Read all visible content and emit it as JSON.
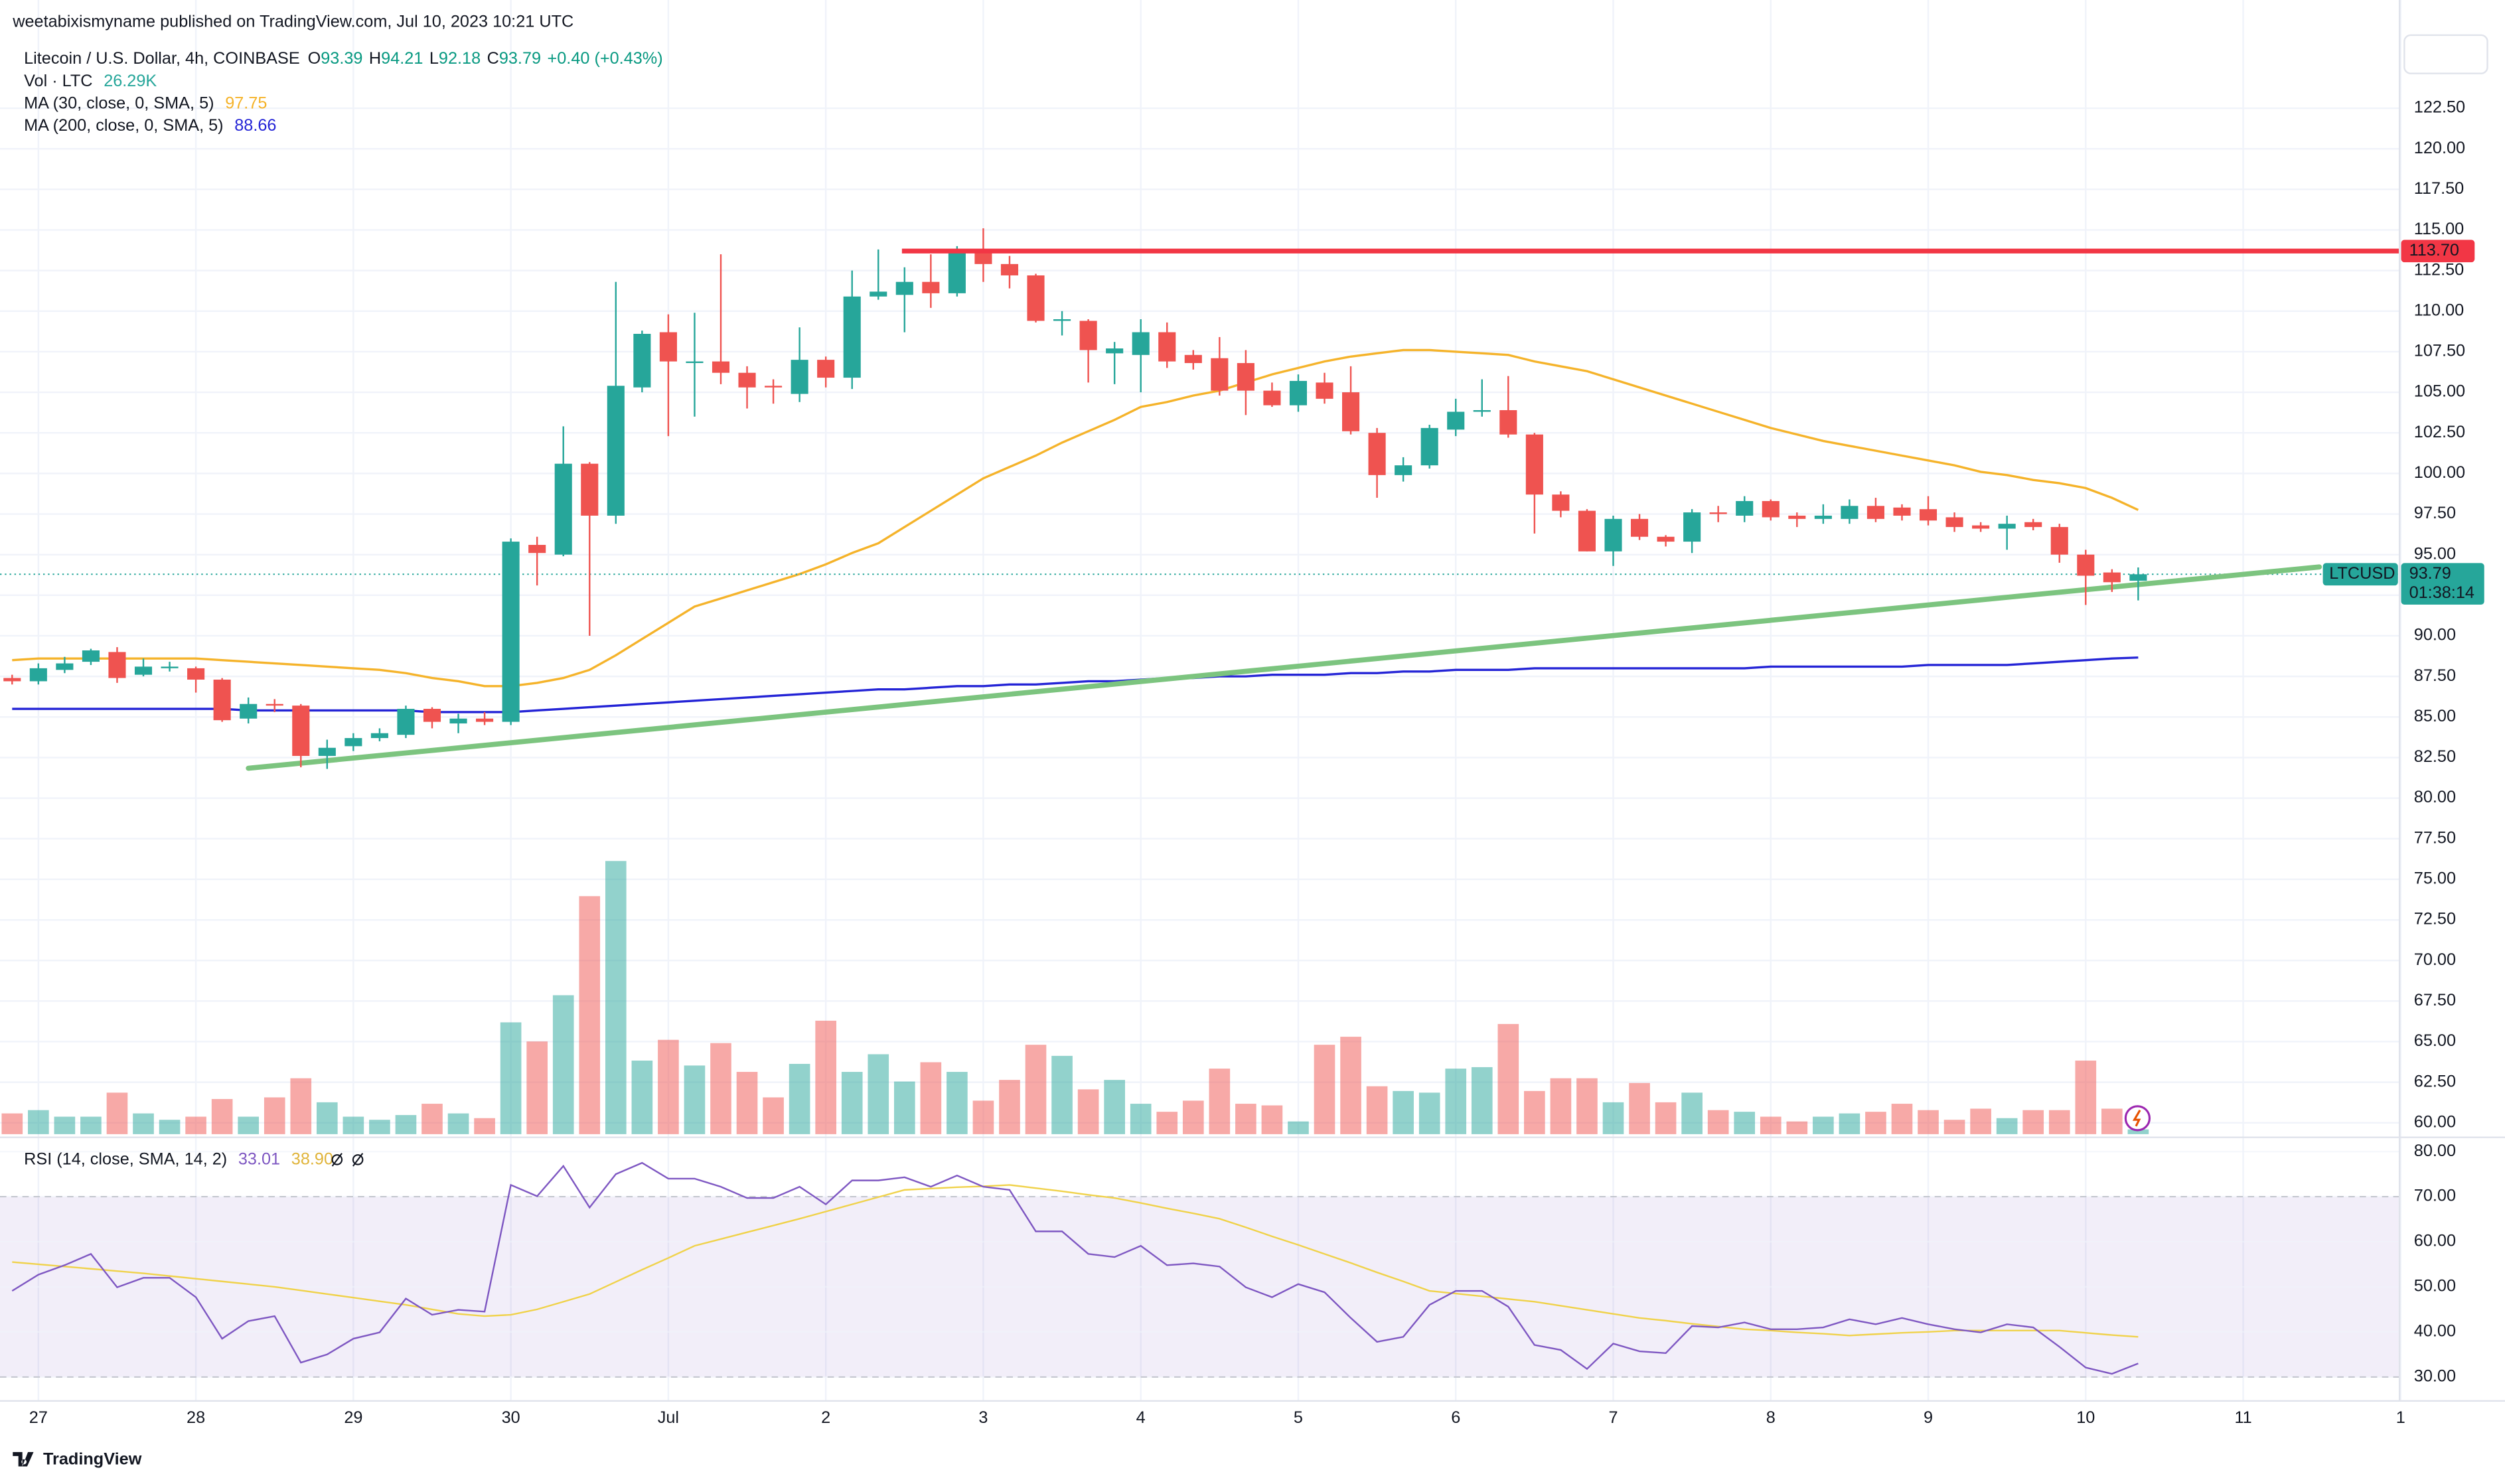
{
  "header": {
    "publisher": "weetabixismyname published on TradingView.com, Jul 10, 2023 10:21 UTC"
  },
  "footer": {
    "brand": "TradingView"
  },
  "chart_data": {
    "type": "candlestick",
    "title": "Litecoin / U.S. Dollar, 4h, COINBASE",
    "ohlc_letters": [
      "O",
      "H",
      "L",
      "C"
    ],
    "change": "+0.40 (+0.43%)",
    "up_color": "#26a69a",
    "down_color": "#ef5350",
    "open": [
      87.4,
      87.2,
      87.9,
      88.4,
      89.0,
      87.6,
      88.0,
      88.0,
      87.3,
      84.9,
      85.8,
      85.7,
      82.6,
      83.2,
      83.7,
      83.9,
      85.5,
      84.6,
      84.9,
      84.7,
      95.6,
      95.0,
      100.6,
      97.4,
      105.3,
      108.7,
      106.9,
      106.9,
      106.2,
      105.4,
      104.9,
      107.0,
      105.9,
      110.9,
      111.0,
      111.8,
      111.1,
      113.7,
      112.9,
      112.2,
      109.4,
      109.4,
      107.4,
      107.3,
      108.7,
      107.3,
      107.1,
      106.8,
      105.1,
      104.2,
      105.6,
      105.0,
      102.5,
      99.9,
      100.5,
      102.7,
      103.8,
      103.9,
      102.4,
      98.7,
      97.7,
      95.2,
      97.2,
      96.1,
      95.8,
      97.6,
      97.4,
      98.3,
      97.4,
      97.2,
      97.2,
      98.0,
      97.9,
      97.8,
      97.3,
      96.8,
      96.6,
      97.0,
      96.7,
      95.0,
      93.9,
      93.39
    ],
    "high": [
      87.6,
      88.3,
      88.7,
      89.2,
      89.3,
      88.6,
      88.4,
      88.1,
      87.4,
      86.2,
      86.1,
      85.8,
      83.6,
      84.0,
      84.3,
      85.7,
      85.6,
      85.2,
      85.3,
      96.0,
      96.1,
      102.9,
      100.7,
      111.8,
      108.8,
      109.8,
      109.9,
      113.5,
      106.6,
      105.8,
      109.0,
      107.2,
      112.5,
      113.8,
      112.7,
      113.5,
      114.0,
      115.1,
      113.4,
      112.3,
      110.0,
      109.5,
      108.1,
      109.5,
      109.3,
      107.6,
      108.4,
      107.6,
      105.6,
      106.1,
      106.2,
      106.6,
      102.8,
      101.0,
      103.0,
      104.6,
      105.8,
      106.0,
      102.5,
      98.9,
      97.8,
      97.4,
      97.5,
      96.2,
      97.8,
      98.0,
      98.6,
      98.4,
      97.6,
      98.1,
      98.4,
      98.5,
      98.1,
      98.6,
      97.6,
      97.0,
      97.4,
      97.2,
      96.9,
      95.3,
      94.1,
      94.21
    ],
    "low": [
      87.0,
      87.0,
      87.7,
      88.2,
      87.1,
      87.5,
      87.8,
      86.5,
      84.7,
      84.6,
      85.3,
      81.9,
      81.8,
      82.9,
      83.5,
      83.7,
      84.3,
      84.0,
      84.5,
      84.5,
      93.1,
      94.9,
      90.0,
      96.9,
      105.0,
      102.3,
      103.5,
      105.5,
      104.0,
      104.3,
      104.4,
      105.3,
      105.2,
      110.7,
      108.7,
      110.2,
      110.9,
      111.8,
      111.4,
      109.3,
      108.5,
      105.6,
      105.5,
      105.0,
      106.5,
      106.4,
      104.8,
      103.6,
      104.1,
      103.8,
      104.3,
      102.4,
      98.5,
      99.5,
      100.3,
      102.3,
      103.5,
      102.2,
      96.3,
      97.3,
      95.2,
      94.3,
      95.9,
      95.5,
      95.1,
      97.0,
      97.0,
      97.1,
      96.7,
      96.9,
      96.9,
      97.0,
      97.1,
      96.8,
      96.4,
      96.4,
      95.3,
      96.5,
      94.5,
      91.9,
      92.7,
      92.18
    ],
    "close": [
      87.2,
      88.0,
      88.3,
      89.1,
      87.4,
      88.1,
      88.1,
      87.3,
      84.8,
      85.8,
      85.7,
      82.6,
      83.1,
      83.7,
      84.0,
      85.5,
      84.7,
      84.9,
      84.7,
      95.8,
      95.1,
      100.6,
      97.4,
      105.4,
      108.6,
      106.9,
      106.9,
      106.2,
      105.3,
      105.3,
      107.0,
      105.9,
      110.9,
      111.2,
      111.8,
      111.1,
      113.8,
      112.9,
      112.2,
      109.4,
      109.5,
      107.6,
      107.7,
      108.7,
      106.9,
      106.8,
      105.1,
      105.1,
      104.2,
      105.7,
      104.6,
      102.6,
      99.9,
      100.5,
      102.8,
      103.8,
      103.9,
      102.4,
      98.7,
      97.7,
      95.2,
      97.2,
      96.1,
      95.8,
      97.6,
      97.5,
      98.3,
      97.3,
      97.2,
      97.4,
      98.0,
      97.2,
      97.4,
      97.1,
      96.7,
      96.6,
      96.9,
      96.7,
      95.0,
      93.7,
      93.3,
      93.79
    ],
    "xlim": [
      0,
      91
    ],
    "xticks": [
      {
        "value": 1,
        "label": "27"
      },
      {
        "value": 7,
        "label": "28"
      },
      {
        "value": 13,
        "label": "29"
      },
      {
        "value": 19,
        "label": "30"
      },
      {
        "value": 25,
        "label": "Jul"
      },
      {
        "value": 31,
        "label": "2"
      },
      {
        "value": 37,
        "label": "3"
      },
      {
        "value": 43,
        "label": "4"
      },
      {
        "value": 49,
        "label": "5"
      },
      {
        "value": 55,
        "label": "6"
      },
      {
        "value": 61,
        "label": "7"
      },
      {
        "value": 67,
        "label": "8"
      },
      {
        "value": 73,
        "label": "9"
      },
      {
        "value": 79,
        "label": "10"
      },
      {
        "value": 85,
        "label": "11"
      },
      {
        "value": 91,
        "label": "1"
      }
    ],
    "ylim": [
      59.3,
      127.0
    ],
    "yticks": [
      {
        "value": 60,
        "label": "60.00"
      },
      {
        "value": 62.5,
        "label": "62.50"
      },
      {
        "value": 65,
        "label": "65.00"
      },
      {
        "value": 67.5,
        "label": "67.50"
      },
      {
        "value": 70,
        "label": "70.00"
      },
      {
        "value": 72.5,
        "label": "72.50"
      },
      {
        "value": 75,
        "label": "75.00"
      },
      {
        "value": 77.5,
        "label": "77.50"
      },
      {
        "value": 80,
        "label": "80.00"
      },
      {
        "value": 82.5,
        "label": "82.50"
      },
      {
        "value": 85,
        "label": "85.00"
      },
      {
        "value": 87.5,
        "label": "87.50"
      },
      {
        "value": 90,
        "label": "90.00"
      },
      {
        "value": 92.5,
        "label": "92.50"
      },
      {
        "value": 95,
        "label": "95.00"
      },
      {
        "value": 97.5,
        "label": "97.50"
      },
      {
        "value": 100,
        "label": "100.00"
      },
      {
        "value": 102.5,
        "label": "102.50"
      },
      {
        "value": 105,
        "label": "105.00"
      },
      {
        "value": 107.5,
        "label": "107.50"
      },
      {
        "value": 110,
        "label": "110.00"
      },
      {
        "value": 112.5,
        "label": "112.50"
      },
      {
        "value": 115,
        "label": "115.00"
      },
      {
        "value": 117.5,
        "label": "117.50"
      },
      {
        "value": 120,
        "label": "120.00"
      },
      {
        "value": 122.5,
        "label": "122.50"
      }
    ],
    "grid": true,
    "series": [
      {
        "name": "MA (30, close, 0, SMA, 5)",
        "color": "#f5b32a",
        "values": [
          88.5,
          88.6,
          88.6,
          88.6,
          88.6,
          88.6,
          88.6,
          88.6,
          88.5,
          88.4,
          88.3,
          88.2,
          88.1,
          88.0,
          87.9,
          87.7,
          87.4,
          87.2,
          86.9,
          86.9,
          87.1,
          87.4,
          87.9,
          88.8,
          89.8,
          90.8,
          91.8,
          92.3,
          92.8,
          93.3,
          93.8,
          94.4,
          95.1,
          95.7,
          96.7,
          97.7,
          98.7,
          99.7,
          100.4,
          101.1,
          101.9,
          102.6,
          103.3,
          104.1,
          104.4,
          104.8,
          105.1,
          105.6,
          106.1,
          106.5,
          106.9,
          107.2,
          107.4,
          107.6,
          107.6,
          107.5,
          107.4,
          107.3,
          106.9,
          106.6,
          106.3,
          105.8,
          105.3,
          104.8,
          104.3,
          103.8,
          103.3,
          102.8,
          102.4,
          102.0,
          101.7,
          101.4,
          101.1,
          100.8,
          100.5,
          100.1,
          99.9,
          99.6,
          99.4,
          99.1,
          98.5,
          97.75
        ]
      },
      {
        "name": "MA (200, close, 0, SMA, 5)",
        "color": "#2424d6",
        "values": [
          85.5,
          85.5,
          85.5,
          85.5,
          85.5,
          85.5,
          85.5,
          85.5,
          85.5,
          85.4,
          85.4,
          85.4,
          85.4,
          85.4,
          85.4,
          85.4,
          85.3,
          85.3,
          85.3,
          85.3,
          85.4,
          85.5,
          85.6,
          85.7,
          85.8,
          85.9,
          86.0,
          86.1,
          86.2,
          86.3,
          86.4,
          86.5,
          86.6,
          86.7,
          86.7,
          86.8,
          86.9,
          86.9,
          87.0,
          87.0,
          87.1,
          87.2,
          87.2,
          87.3,
          87.4,
          87.4,
          87.5,
          87.5,
          87.6,
          87.6,
          87.6,
          87.7,
          87.7,
          87.8,
          87.8,
          87.9,
          87.9,
          87.9,
          88.0,
          88.0,
          88.0,
          88.0,
          88.0,
          88.0,
          88.0,
          88.0,
          88.0,
          88.1,
          88.1,
          88.1,
          88.1,
          88.1,
          88.1,
          88.2,
          88.2,
          88.2,
          88.2,
          88.3,
          88.4,
          88.5,
          88.6,
          88.66
        ]
      }
    ],
    "volume": {
      "name": "Vol · LTC",
      "ylim": [
        0,
        1600
      ],
      "values": [
        114,
        132,
        96,
        96,
        228,
        114,
        79,
        96,
        193,
        96,
        202,
        307,
        175,
        96,
        79,
        105,
        167,
        114,
        88,
        614,
        509,
        763,
        1307,
        1500,
        404,
        518,
        377,
        500,
        342,
        202,
        386,
        623,
        342,
        439,
        289,
        395,
        342,
        184,
        298,
        491,
        430,
        246,
        298,
        167,
        123,
        184,
        360,
        167,
        158,
        70,
        491,
        535,
        263,
        237,
        228,
        360,
        368,
        605,
        237,
        307,
        307,
        175,
        281,
        175,
        228,
        132,
        123,
        96,
        70,
        96,
        114,
        123,
        167,
        132,
        79,
        140,
        88,
        132,
        132,
        404,
        140,
        26.29
      ],
      "value_labels": [
        null,
        null,
        null,
        null,
        null,
        null,
        null,
        null,
        null,
        null,
        null,
        null,
        null,
        null,
        null,
        null,
        null,
        null,
        null,
        null,
        null,
        null,
        null,
        null,
        null,
        null,
        null,
        null,
        null,
        null,
        null,
        null,
        null,
        null,
        null,
        null,
        null,
        null,
        null,
        null,
        null,
        null,
        null,
        null,
        null,
        null,
        null,
        null,
        null,
        null,
        null,
        null,
        null,
        null,
        null,
        null,
        null,
        null,
        null,
        null,
        null,
        null,
        null,
        null,
        null,
        null,
        null,
        null,
        null,
        null,
        null,
        null,
        null,
        null,
        null,
        null,
        null,
        null,
        null,
        null,
        null,
        "26.29K"
      ]
    },
    "price_line": {
      "value": 113.7,
      "label": "113.70",
      "color": "#f23645",
      "x": 33.9
    },
    "trendline": {
      "color": "#7cc47f",
      "x": [
        9,
        87.9
      ],
      "y": [
        81.84,
        94.24
      ]
    },
    "last_price": {
      "symbol": "LTCUSD",
      "countdown": "01:38:14"
    },
    "rsi": {
      "name": "RSI (14, close, SMA, 14, 2)",
      "color": "#7e57c2",
      "values": [
        49.1,
        52.7,
        54.8,
        57.3,
        49.9,
        52.0,
        52.0,
        47.7,
        38.5,
        42.4,
        43.5,
        33.2,
        35.0,
        38.5,
        39.9,
        47.4,
        43.8,
        44.9,
        44.5,
        72.6,
        70.1,
        76.8,
        67.6,
        75.0,
        77.5,
        74.0,
        74.0,
        72.2,
        69.7,
        69.7,
        72.2,
        68.3,
        73.6,
        73.6,
        74.3,
        72.2,
        74.7,
        72.2,
        71.5,
        62.3,
        62.3,
        57.3,
        56.6,
        59.1,
        54.8,
        55.2,
        54.5,
        49.9,
        47.7,
        50.6,
        48.8,
        43.1,
        37.8,
        38.9,
        46.0,
        49.1,
        49.1,
        45.6,
        37.1,
        36.0,
        31.8,
        37.4,
        35.7,
        35.3,
        41.3,
        41.0,
        42.1,
        40.6,
        40.6,
        41.0,
        42.8,
        41.7,
        43.1,
        41.7,
        40.6,
        39.9,
        41.7,
        41.0,
        36.7,
        32.1,
        30.7,
        33.01
      ],
      "ma": {
        "color": "#f0d24a",
        "values": [
          55.5,
          55.0,
          54.5,
          54.0,
          53.5,
          53.0,
          52.4,
          51.8,
          51.2,
          50.6,
          50.0,
          49.2,
          48.4,
          47.6,
          46.8,
          46.0,
          45.0,
          44.0,
          43.5,
          43.8,
          45.0,
          46.7,
          48.4,
          51.1,
          53.8,
          56.4,
          59.1,
          60.6,
          62.1,
          63.6,
          65.1,
          66.7,
          68.3,
          69.9,
          71.5,
          71.8,
          72.1,
          72.3,
          72.6,
          71.9,
          71.2,
          70.4,
          69.7,
          68.6,
          67.4,
          66.3,
          65.1,
          63.2,
          61.2,
          59.3,
          57.3,
          55.3,
          53.2,
          51.2,
          49.1,
          48.5,
          47.9,
          47.3,
          46.7,
          45.8,
          44.9,
          44.0,
          43.1,
          42.5,
          41.8,
          41.2,
          40.6,
          40.3,
          39.9,
          39.6,
          39.2,
          39.5,
          39.8,
          40.0,
          40.3,
          40.3,
          40.3,
          40.3,
          40.3,
          39.8,
          39.3,
          38.9
        ],
        "value_labels": [
          null,
          null,
          null,
          null,
          null,
          null,
          null,
          null,
          null,
          null,
          null,
          null,
          null,
          null,
          null,
          null,
          null,
          null,
          null,
          null,
          null,
          null,
          null,
          null,
          null,
          null,
          null,
          null,
          null,
          null,
          null,
          null,
          null,
          null,
          null,
          null,
          null,
          null,
          null,
          null,
          null,
          null,
          null,
          null,
          null,
          null,
          null,
          null,
          null,
          null,
          null,
          null,
          null,
          null,
          null,
          null,
          null,
          null,
          null,
          null,
          null,
          null,
          null,
          null,
          null,
          null,
          null,
          null,
          null,
          null,
          null,
          null,
          null,
          null,
          null,
          null,
          null,
          null,
          null,
          null,
          null,
          "38.90"
        ]
      },
      "ylim": [
        25.4,
        82.8
      ],
      "band": [
        70,
        30
      ],
      "yticks": [
        {
          "value": 30,
          "label": "30.00"
        },
        {
          "value": 40,
          "label": "40.00"
        },
        {
          "value": 50,
          "label": "50.00"
        },
        {
          "value": 60,
          "label": "60.00"
        },
        {
          "value": 70,
          "label": "70.00"
        },
        {
          "value": 80,
          "label": "80.00"
        }
      ]
    }
  }
}
